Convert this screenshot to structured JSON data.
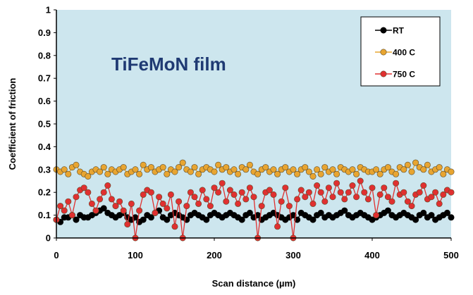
{
  "chart_data": {
    "type": "line",
    "title": "",
    "annotation": "TiFeMoN film",
    "xlabel": "Scan distance (µm)",
    "ylabel": "Coefficient of friction",
    "xlim": [
      0,
      500
    ],
    "ylim": [
      0,
      1
    ],
    "x_ticks": [
      "0",
      "100",
      "200",
      "300",
      "400",
      "500"
    ],
    "y_ticks": [
      "0",
      "0.1",
      "0.2",
      "0.3",
      "0.4",
      "0.5",
      "0.6",
      "0.7",
      "0.8",
      "0.9",
      "1"
    ],
    "legend_position": "top-right",
    "grid": false,
    "plot_background": "#cde6ee",
    "x": [
      0,
      5,
      10,
      15,
      20,
      25,
      30,
      35,
      40,
      45,
      50,
      55,
      60,
      65,
      70,
      75,
      80,
      85,
      90,
      95,
      100,
      105,
      110,
      115,
      120,
      125,
      130,
      135,
      140,
      145,
      150,
      155,
      160,
      165,
      170,
      175,
      180,
      185,
      190,
      195,
      200,
      205,
      210,
      215,
      220,
      225,
      230,
      235,
      240,
      245,
      250,
      255,
      260,
      265,
      270,
      275,
      280,
      285,
      290,
      295,
      300,
      305,
      310,
      315,
      320,
      325,
      330,
      335,
      340,
      345,
      350,
      355,
      360,
      365,
      370,
      375,
      380,
      385,
      390,
      395,
      400,
      405,
      410,
      415,
      420,
      425,
      430,
      435,
      440,
      445,
      450,
      455,
      460,
      465,
      470,
      475,
      480,
      485,
      490,
      495,
      500
    ],
    "series": [
      {
        "name": "RT",
        "color": "#000000",
        "values": [
          0.08,
          0.07,
          0.09,
          0.09,
          0.1,
          0.08,
          0.1,
          0.09,
          0.09,
          0.1,
          0.11,
          0.12,
          0.13,
          0.11,
          0.1,
          0.09,
          0.1,
          0.11,
          0.09,
          0.08,
          0.09,
          0.07,
          0.08,
          0.1,
          0.09,
          0.11,
          0.12,
          0.09,
          0.08,
          0.1,
          0.11,
          0.1,
          0.09,
          0.08,
          0.1,
          0.11,
          0.1,
          0.09,
          0.08,
          0.1,
          0.11,
          0.1,
          0.09,
          0.1,
          0.11,
          0.1,
          0.09,
          0.08,
          0.1,
          0.11,
          0.09,
          0.1,
          0.08,
          0.09,
          0.1,
          0.11,
          0.1,
          0.09,
          0.08,
          0.09,
          0.1,
          0.08,
          0.11,
          0.1,
          0.09,
          0.08,
          0.1,
          0.11,
          0.09,
          0.1,
          0.09,
          0.1,
          0.11,
          0.12,
          0.1,
          0.09,
          0.1,
          0.11,
          0.1,
          0.09,
          0.08,
          0.09,
          0.1,
          0.11,
          0.12,
          0.1,
          0.09,
          0.1,
          0.11,
          0.1,
          0.09,
          0.08,
          0.1,
          0.11,
          0.09,
          0.1,
          0.08,
          0.09,
          0.1,
          0.11,
          0.09
        ]
      },
      {
        "name": "400 C",
        "color": "#e8a531",
        "values": [
          0.3,
          0.29,
          0.3,
          0.28,
          0.31,
          0.32,
          0.29,
          0.28,
          0.27,
          0.29,
          0.3,
          0.29,
          0.31,
          0.28,
          0.3,
          0.29,
          0.3,
          0.31,
          0.28,
          0.29,
          0.3,
          0.28,
          0.32,
          0.3,
          0.31,
          0.29,
          0.3,
          0.31,
          0.28,
          0.3,
          0.29,
          0.31,
          0.33,
          0.3,
          0.29,
          0.31,
          0.28,
          0.3,
          0.31,
          0.3,
          0.29,
          0.32,
          0.3,
          0.31,
          0.29,
          0.3,
          0.28,
          0.31,
          0.3,
          0.32,
          0.29,
          0.28,
          0.3,
          0.31,
          0.29,
          0.3,
          0.28,
          0.3,
          0.31,
          0.29,
          0.3,
          0.28,
          0.3,
          0.31,
          0.29,
          0.27,
          0.3,
          0.28,
          0.31,
          0.29,
          0.3,
          0.28,
          0.31,
          0.3,
          0.29,
          0.3,
          0.28,
          0.31,
          0.3,
          0.29,
          0.29,
          0.3,
          0.28,
          0.3,
          0.31,
          0.29,
          0.28,
          0.31,
          0.3,
          0.32,
          0.29,
          0.33,
          0.31,
          0.3,
          0.32,
          0.29,
          0.3,
          0.31,
          0.28,
          0.3,
          0.29
        ]
      },
      {
        "name": "750 C",
        "color": "#e03030",
        "values": [
          0.08,
          0.14,
          0.12,
          0.16,
          0.1,
          0.18,
          0.21,
          0.22,
          0.2,
          0.15,
          0.12,
          0.17,
          0.2,
          0.23,
          0.17,
          0.14,
          0.16,
          0.12,
          0.06,
          0.15,
          0.0,
          0.12,
          0.19,
          0.21,
          0.2,
          0.11,
          0.18,
          0.15,
          0.13,
          0.19,
          0.05,
          0.16,
          0.0,
          0.14,
          0.2,
          0.18,
          0.15,
          0.21,
          0.17,
          0.14,
          0.22,
          0.2,
          0.24,
          0.16,
          0.21,
          0.19,
          0.15,
          0.2,
          0.17,
          0.22,
          0.18,
          0.0,
          0.14,
          0.2,
          0.21,
          0.19,
          0.05,
          0.16,
          0.22,
          0.14,
          0.0,
          0.17,
          0.21,
          0.18,
          0.2,
          0.15,
          0.23,
          0.2,
          0.16,
          0.22,
          0.18,
          0.24,
          0.2,
          0.17,
          0.2,
          0.23,
          0.18,
          0.25,
          0.2,
          0.17,
          0.22,
          0.1,
          0.19,
          0.22,
          0.18,
          0.16,
          0.24,
          0.19,
          0.2,
          0.16,
          0.14,
          0.19,
          0.2,
          0.23,
          0.17,
          0.18,
          0.2,
          0.15,
          0.19,
          0.21,
          0.2
        ]
      }
    ]
  }
}
